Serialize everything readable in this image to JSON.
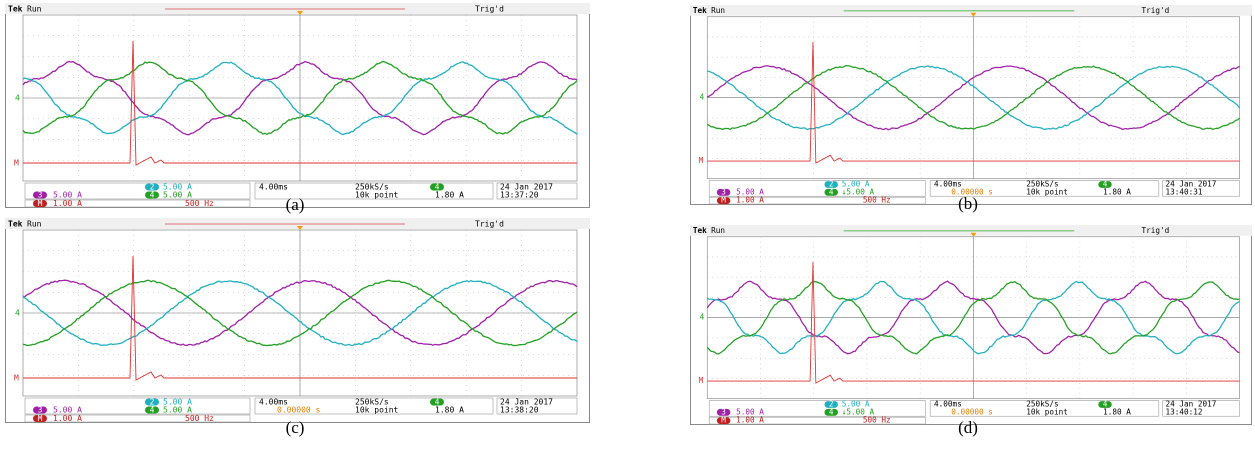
{
  "panels": [
    {
      "label": "(a)",
      "brand": "Tek",
      "status": "Run",
      "trigger_status": "Trig'd",
      "ch2_badge": "2",
      "ch2_scale": "5.00 A",
      "ch3_badge": "3",
      "ch3_scale": "5.00 A",
      "ch4_badge": "4",
      "ch4_scale": "5.00 A",
      "math_badge": "M",
      "math_scale": "1.00 A",
      "math_freq": "500 Hz",
      "time_div": "4.00ms",
      "sample_rate": "250kS/s",
      "record_length": "10k point",
      "trigger_badge": "4",
      "trigger_level": "1.80 A",
      "date": "24 Jan 2017",
      "time": "13:37:20"
    },
    {
      "label": "(b)",
      "brand": "Tek",
      "status": "Run",
      "trigger_status": "Trig'd",
      "ch2_badge": "2",
      "ch2_scale": "5.00 A",
      "ch3_badge": "3",
      "ch3_scale": "5.00 A",
      "ch4_badge": "4",
      "ch4_scale": "↓5.00 A",
      "math_badge": "M",
      "math_scale": "1.00 A",
      "math_freq": "500 Hz",
      "time_div": "4.00ms",
      "trigger_offset": "0.00000 s",
      "sample_rate": "250kS/s",
      "record_length": "10k point",
      "trigger_badge": "4",
      "trigger_level": "1.80 A",
      "date": "24 Jan 2017",
      "time": "13:40:31"
    },
    {
      "label": "(c)",
      "brand": "Tek",
      "status": "Run",
      "trigger_status": "Trig'd",
      "ch2_badge": "2",
      "ch2_scale": "5.00 A",
      "ch3_badge": "3",
      "ch3_scale": "5.00 A",
      "ch4_badge": "4",
      "ch4_scale": "5.00 A",
      "math_badge": "M",
      "math_scale": "1.00 A",
      "math_freq": "500 Hz",
      "time_div": "4.00ms",
      "trigger_offset": "0.00000 s",
      "sample_rate": "250kS/s",
      "record_length": "10k point",
      "trigger_badge": "4",
      "trigger_level": "1.80 A",
      "date": "24 Jan 2017",
      "time": "13:38:20"
    },
    {
      "label": "(d)",
      "brand": "Tek",
      "status": "Run",
      "trigger_status": "Trig'd",
      "ch2_badge": "2",
      "ch2_scale": "5.00 A",
      "ch3_badge": "3",
      "ch3_scale": "5.00 A",
      "ch4_badge": "4",
      "ch4_scale": "↓5.00 A",
      "math_badge": "M",
      "math_scale": "1.00 A",
      "math_freq": "500 Hz",
      "time_div": "4.00ms",
      "trigger_offset": "0.00000 s",
      "sample_rate": "250kS/s",
      "record_length": "10k point",
      "trigger_badge": "4",
      "trigger_level": "1.80 A",
      "date": "24 Jan 2017",
      "time": "13:40:12"
    }
  ]
}
